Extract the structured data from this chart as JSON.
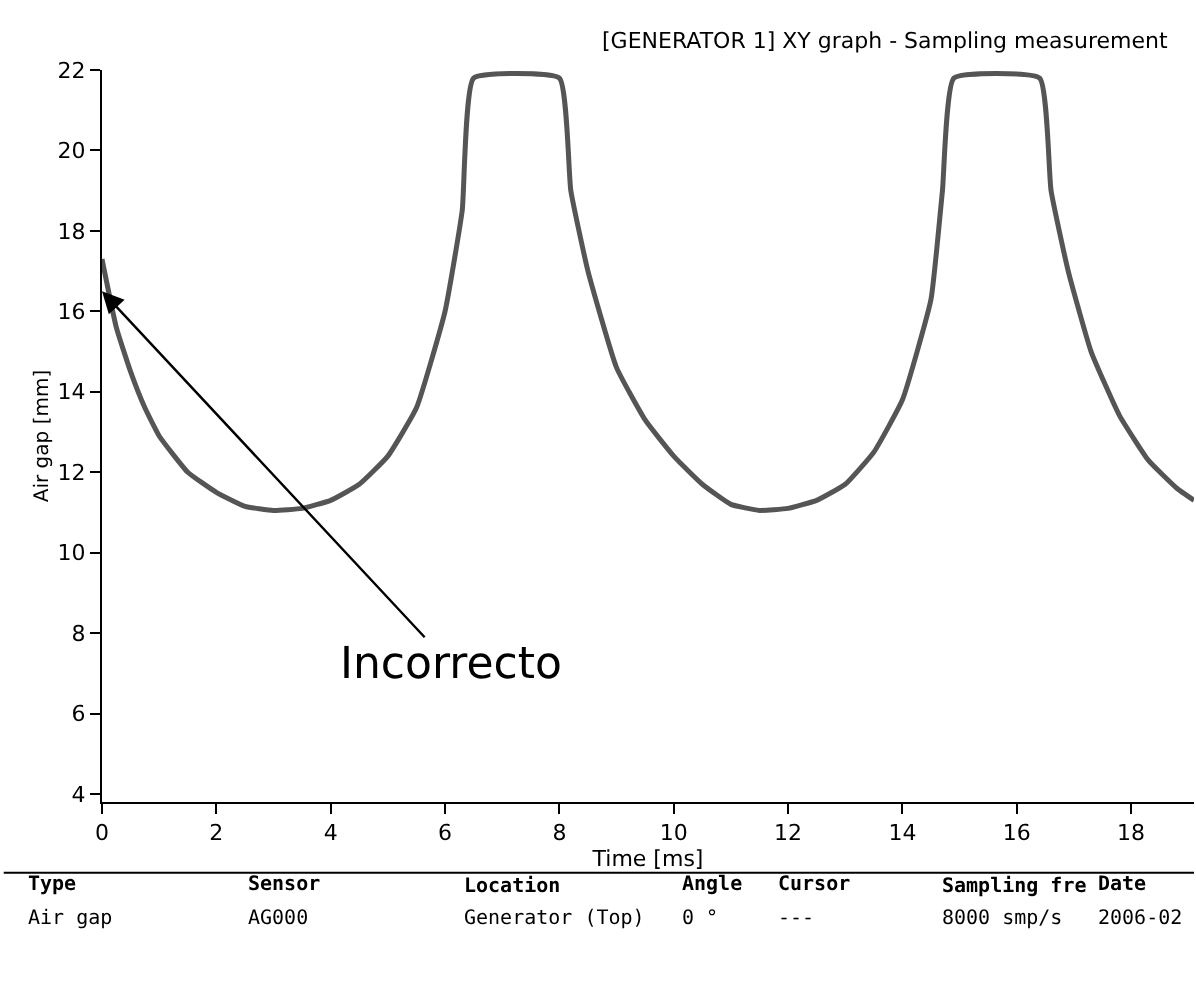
{
  "chart_data": {
    "type": "line",
    "title": "[GENERATOR 1] XY graph - Sampling measurement",
    "xlabel": "Time [ms]",
    "ylabel": "Air gap [mm]",
    "x": [
      0,
      0.25,
      0.5,
      0.75,
      1,
      1.5,
      2,
      2.5,
      3,
      3.5,
      4,
      4.5,
      5,
      5.5,
      6,
      6.3,
      6.5,
      8,
      8.2,
      8.5,
      9,
      9.5,
      10,
      10.5,
      11,
      11.5,
      12,
      12.5,
      13,
      13.5,
      14,
      14.5,
      14.7,
      14.9,
      16.4,
      16.6,
      16.9,
      17.3,
      17.8,
      18.3,
      18.8,
      19.1
    ],
    "series": [
      {
        "color": "#555555",
        "values": [
          17.3,
          15.6,
          14.5,
          13.6,
          12.9,
          12.0,
          11.5,
          11.15,
          11.05,
          11.1,
          11.3,
          11.7,
          12.4,
          13.6,
          16.0,
          18.5,
          21.8,
          21.8,
          19.0,
          17.0,
          14.6,
          13.3,
          12.4,
          11.7,
          11.2,
          11.05,
          11.1,
          11.3,
          11.7,
          12.5,
          13.8,
          16.3,
          19.0,
          21.8,
          21.8,
          19.0,
          17.0,
          15.0,
          13.4,
          12.3,
          11.6,
          11.3
        ]
      }
    ],
    "xlim": [
      0,
      19.1
    ],
    "ylim": [
      3.8,
      22
    ],
    "xticks": [
      0,
      2,
      4,
      6,
      8,
      10,
      12,
      14,
      16,
      18
    ],
    "yticks": [
      4,
      6,
      8,
      10,
      12,
      14,
      16,
      18,
      20,
      22
    ],
    "marker": "none",
    "line_style": "solid",
    "annotations": [
      {
        "text": "Incorrecto",
        "x": 0,
        "y": 16.5
      },
      "Type",
      "Sensor",
      "Location",
      "Angle",
      "Cursor",
      "Sampling fre",
      "Date",
      "Air gap",
      "AG000",
      "Generator (Top)",
      "0 °",
      "---",
      "8000 smp/s",
      "2006-02"
    ]
  }
}
